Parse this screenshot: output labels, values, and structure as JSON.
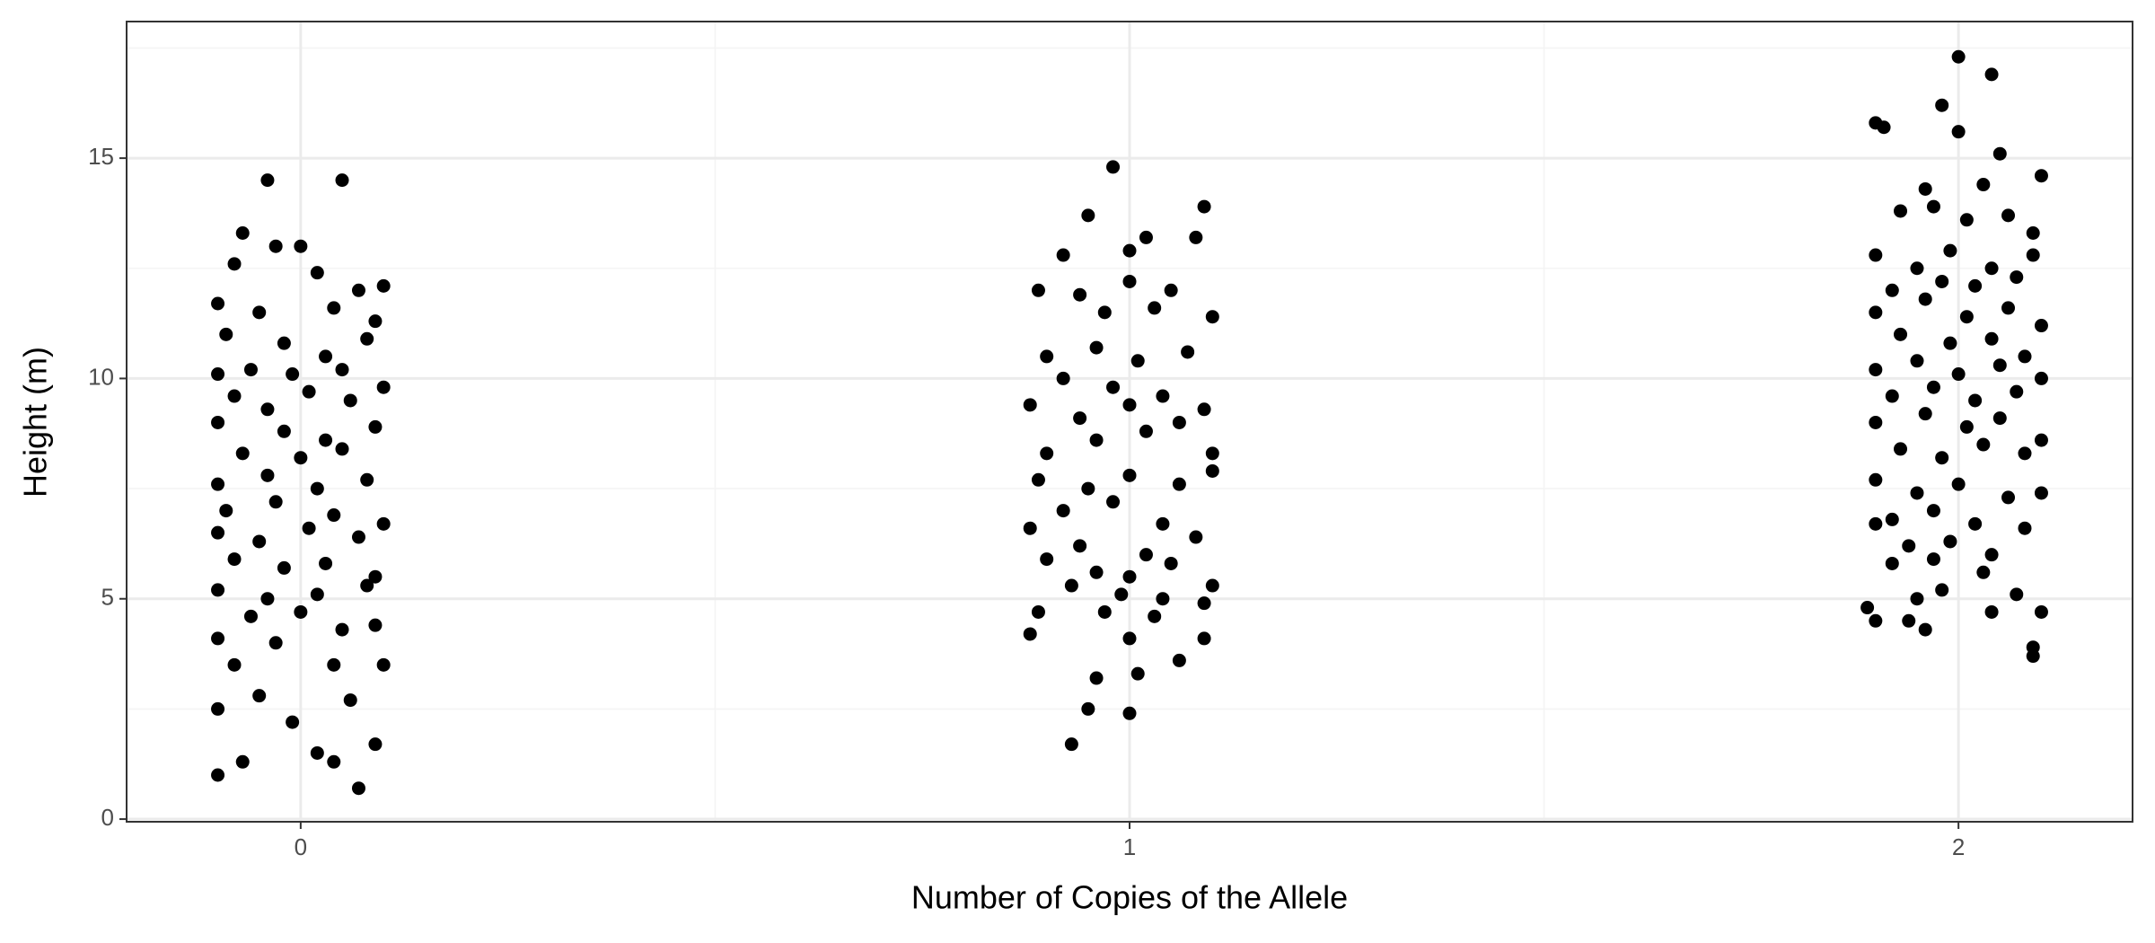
{
  "chart_data": {
    "type": "scatter",
    "x_label": "Number of Copies of the Allele",
    "y_label": "Height (m)",
    "color": "#000000",
    "grid": true,
    "xlim": [
      -0.21,
      2.21
    ],
    "ylim": [
      -0.06,
      18.1
    ],
    "xticks": [
      0,
      1,
      2
    ],
    "yticks": [
      0,
      5,
      10,
      15
    ],
    "minor_xticks": [
      0.5,
      1.5
    ],
    "minor_yticks": [
      2.5,
      7.5,
      12.5,
      17.5
    ],
    "x": [
      -0.04,
      0.05,
      -0.07,
      -0.03,
      0.0,
      -0.08,
      0.02,
      0.07,
      0.1,
      -0.1,
      -0.05,
      0.04,
      0.09,
      -0.09,
      -0.02,
      0.03,
      0.08,
      -0.1,
      -0.06,
      -0.01,
      0.05,
      0.1,
      -0.08,
      -0.04,
      0.01,
      0.06,
      -0.1,
      -0.02,
      0.03,
      0.09,
      -0.07,
      0.0,
      0.05,
      -0.1,
      -0.04,
      0.02,
      0.08,
      -0.09,
      -0.03,
      0.04,
      0.1,
      -0.1,
      -0.05,
      0.01,
      0.07,
      -0.08,
      -0.02,
      0.03,
      0.09,
      -0.1,
      -0.04,
      0.02,
      0.08,
      -0.06,
      0.0,
      0.05,
      -0.1,
      -0.03,
      0.09,
      -0.08,
      0.04,
      0.1,
      -0.05,
      -0.01,
      0.06,
      -0.1,
      0.02,
      0.04,
      -0.07,
      0.09,
      -0.1,
      0.07,
      0.98,
      0.95,
      1.09,
      1.02,
      1.08,
      0.92,
      1.0,
      0.89,
      0.94,
      1.0,
      1.05,
      1.1,
      0.97,
      1.03,
      0.9,
      0.96,
      1.01,
      1.07,
      0.92,
      0.98,
      1.04,
      1.09,
      0.88,
      0.94,
      1.0,
      1.06,
      0.9,
      0.96,
      1.02,
      1.1,
      0.89,
      0.95,
      1.0,
      1.06,
      1.1,
      0.92,
      0.98,
      1.04,
      0.88,
      0.94,
      1.02,
      1.08,
      0.9,
      0.96,
      1.0,
      1.05,
      1.1,
      0.93,
      0.99,
      1.04,
      1.09,
      0.89,
      0.97,
      1.03,
      0.88,
      1.0,
      1.06,
      1.09,
      0.96,
      1.01,
      0.95,
      1.0,
      0.93,
      2.0,
      2.04,
      1.98,
      1.91,
      1.9,
      2.0,
      2.05,
      2.1,
      1.96,
      2.03,
      1.93,
      1.97,
      2.01,
      2.06,
      2.09,
      1.9,
      1.95,
      1.99,
      2.04,
      2.09,
      1.92,
      1.98,
      2.02,
      2.07,
      1.9,
      1.96,
      2.01,
      2.06,
      2.1,
      1.93,
      1.99,
      2.04,
      2.08,
      1.9,
      1.95,
      2.0,
      2.05,
      2.1,
      1.92,
      1.97,
      2.02,
      2.07,
      1.9,
      1.96,
      2.01,
      2.05,
      2.1,
      1.93,
      1.98,
      2.03,
      2.08,
      1.9,
      1.95,
      2.0,
      2.06,
      2.1,
      1.92,
      1.97,
      2.02,
      2.08,
      1.9,
      1.94,
      1.99,
      2.04,
      1.92,
      1.97,
      2.03,
      2.07,
      1.98,
      1.89,
      1.9,
      1.94,
      1.96,
      1.95,
      2.04,
      2.1,
      2.09,
      2.09
    ],
    "y": [
      14.5,
      14.5,
      13.3,
      13,
      13,
      12.6,
      12.4,
      12,
      12.1,
      11.7,
      11.5,
      11.6,
      11.3,
      11,
      10.8,
      10.5,
      10.9,
      10.1,
      10.2,
      10.1,
      10.2,
      9.8,
      9.6,
      9.3,
      9.7,
      9.5,
      9,
      8.8,
      8.6,
      8.9,
      8.3,
      8.2,
      8.4,
      7.6,
      7.8,
      7.5,
      7.7,
      7,
      7.2,
      6.9,
      6.7,
      6.5,
      6.3,
      6.6,
      6.4,
      5.9,
      5.7,
      5.8,
      5.5,
      5.2,
      5,
      5.1,
      5.3,
      4.6,
      4.7,
      4.3,
      4.1,
      4.0,
      4.4,
      3.5,
      3.5,
      3.5,
      2.8,
      2.2,
      2.7,
      2.5,
      1.5,
      1.3,
      1.3,
      1.7,
      1.0,
      0.7,
      14.8,
      13.7,
      13.9,
      13.2,
      13.2,
      12.8,
      12.9,
      12,
      11.9,
      12.2,
      12,
      11.4,
      11.5,
      11.6,
      10.5,
      10.7,
      10.4,
      10.6,
      10,
      9.8,
      9.6,
      9.3,
      9.4,
      9.1,
      9.4,
      9.0,
      8.3,
      8.6,
      8.8,
      8.3,
      7.7,
      7.5,
      7.8,
      7.6,
      7.9,
      7.0,
      7.2,
      6.7,
      6.6,
      6.2,
      6.0,
      6.4,
      5.9,
      5.6,
      5.5,
      5.8,
      5.3,
      5.3,
      5.1,
      5.0,
      4.9,
      4.7,
      4.7,
      4.6,
      4.2,
      4.1,
      3.6,
      4.1,
      3.2,
      3.3,
      2.5,
      2.4,
      1.7,
      17.3,
      16.9,
      16.2,
      15.7,
      15.8,
      15.6,
      15.1,
      14.6,
      14.3,
      14.4,
      13.8,
      13.9,
      13.6,
      13.7,
      13.3,
      12.8,
      12.5,
      12.9,
      12.5,
      12.8,
      12.0,
      12.2,
      12.1,
      12.3,
      11.5,
      11.8,
      11.4,
      11.6,
      11.2,
      11,
      10.8,
      10.9,
      10.5,
      10.2,
      10.4,
      10.1,
      10.3,
      10.0,
      9.6,
      9.8,
      9.5,
      9.7,
      9.0,
      9.2,
      8.9,
      9.1,
      8.6,
      8.4,
      8.2,
      8.5,
      8.3,
      7.7,
      7.4,
      7.6,
      7.3,
      7.4,
      6.8,
      7.0,
      6.7,
      6.6,
      6.7,
      6.2,
      6.3,
      6.0,
      5.8,
      5.9,
      5.6,
      5.1,
      5.2,
      4.8,
      4.5,
      4.5,
      4.3,
      5.0,
      4.7,
      4.7,
      3.9,
      3.7
    ]
  }
}
